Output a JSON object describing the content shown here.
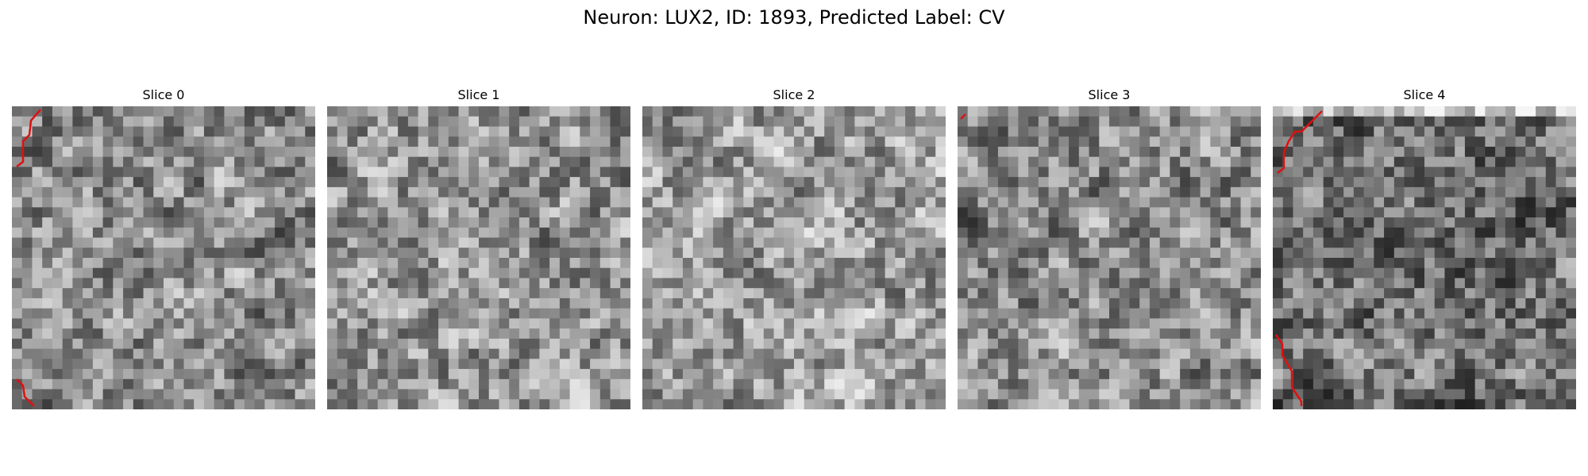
{
  "figure": {
    "title": "Neuron: LUX2, ID: 1893, Predicted Label: CV"
  },
  "panels": [
    {
      "title": "Slice 0",
      "seed": 11,
      "tone": 0.0
    },
    {
      "title": "Slice 1",
      "seed": 23,
      "tone": 0.05
    },
    {
      "title": "Slice 2",
      "seed": 37,
      "tone": 0.08
    },
    {
      "title": "Slice 3",
      "seed": 51,
      "tone": 0.0
    },
    {
      "title": "Slice 4",
      "seed": 67,
      "tone": -0.12
    }
  ],
  "colors": {
    "contour": "#e01010",
    "background": "#ffffff"
  }
}
